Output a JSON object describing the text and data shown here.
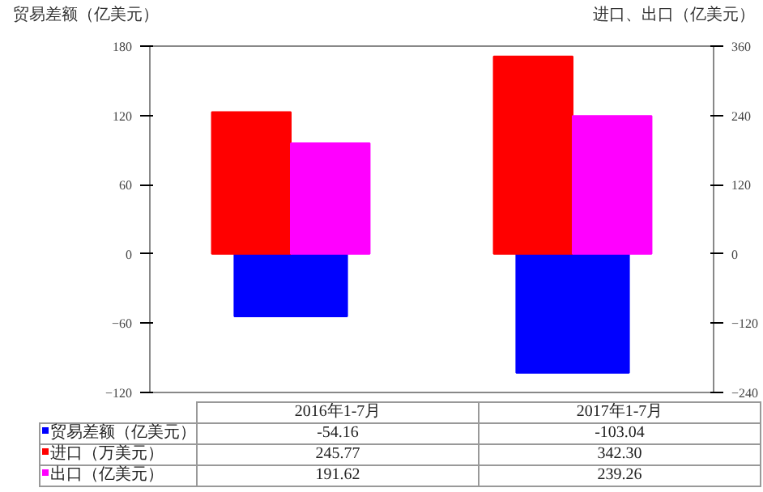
{
  "chart_data": {
    "type": "bar",
    "ylabel": "贸易差额（亿美元）",
    "y2label": "进口、出口（亿美元）",
    "categories": [
      "2016年1-7月",
      "2017年1-7月"
    ],
    "ylim": [
      -120,
      180
    ],
    "yticks": [
      -120,
      -60,
      0,
      60,
      120,
      180
    ],
    "y2lim": [
      -240,
      360
    ],
    "y2ticks": [
      -240,
      -120,
      0,
      120,
      240,
      360
    ],
    "legend": "bottom",
    "series": [
      {
        "name": "贸易差额（亿美元）",
        "color": "#0000ff",
        "values": [
          -54.16,
          -103.04
        ],
        "value_labels": [
          "-54.16",
          "-103.04"
        ]
      },
      {
        "name": "进口（万美元）",
        "color": "#ff0000",
        "axis": "y2",
        "values": [
          245.77,
          342.3
        ],
        "value_labels": [
          "245.77",
          "342.30"
        ]
      },
      {
        "name": "出口（亿美元）",
        "color": "#ff00ff",
        "axis": "y2",
        "values": [
          191.62,
          239.26
        ],
        "value_labels": [
          "191.62",
          "239.26"
        ]
      }
    ]
  }
}
